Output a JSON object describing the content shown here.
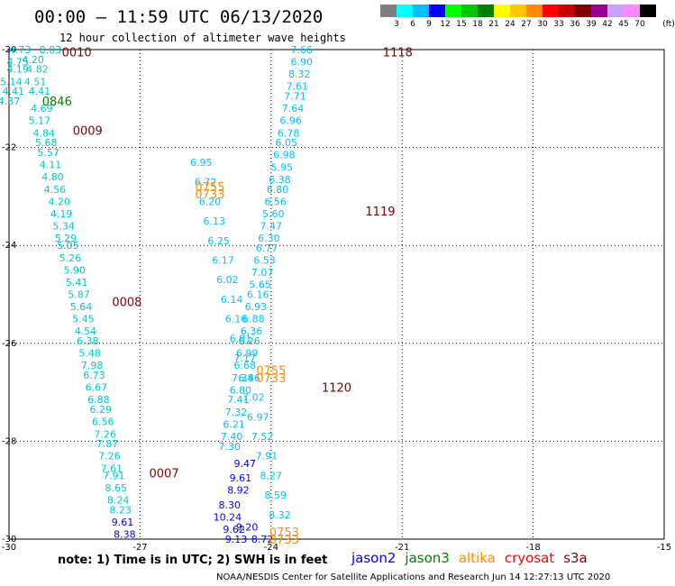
{
  "title": "00:00 – 11:59 UTC 06/13/2020",
  "subtitle": "12 hour collection of altimeter wave heights",
  "colorbar": {
    "unit": "(ft)",
    "colors": [
      "#7f7f7f",
      "#00ffff",
      "#00bfff",
      "#0000ff",
      "#00ff00",
      "#00c800",
      "#008000",
      "#ffff00",
      "#ffc800",
      "#ff8c00",
      "#ff0000",
      "#c80000",
      "#800000",
      "#9c0090",
      "#c8a0ff",
      "#ff88ff",
      "#000000"
    ],
    "labels": [
      "3",
      "6",
      "9",
      "12",
      "15",
      "18",
      "21",
      "24",
      "27",
      "30",
      "33",
      "36",
      "39",
      "42",
      "45",
      "70"
    ]
  },
  "chart_data": {
    "type": "scatter",
    "title": "00:00 – 11:59 UTC 06/13/2020",
    "xlim": [
      -30,
      -15
    ],
    "ylim": [
      -30,
      -20
    ],
    "x_ticks": [
      "-30",
      "-27",
      "-24",
      "-21",
      "-18",
      "-15"
    ],
    "y_ticks": [
      "-20",
      "-22",
      "-24",
      "-26",
      "-28",
      "-30"
    ],
    "grid": true,
    "time_labels": [
      {
        "text": "0010",
        "lon": -28.45,
        "lat": -20.05,
        "color": "#800000"
      },
      {
        "text": "0846",
        "lon": -28.9,
        "lat": -21.05,
        "color": "#008000"
      },
      {
        "text": "0009",
        "lon": -28.2,
        "lat": -21.65,
        "color": "#800000"
      },
      {
        "text": "0008",
        "lon": -27.3,
        "lat": -25.15,
        "color": "#800000"
      },
      {
        "text": "0007",
        "lon": -26.45,
        "lat": -28.65,
        "color": "#800000"
      },
      {
        "text": "0755",
        "lon": -25.4,
        "lat": -22.8,
        "color": "#ff8c00"
      },
      {
        "text": "0733",
        "lon": -25.4,
        "lat": -22.95,
        "color": "#ff8c00"
      },
      {
        "text": "0755",
        "lon": -24.0,
        "lat": -26.55,
        "color": "#ff8c00"
      },
      {
        "text": "0733",
        "lon": -24.0,
        "lat": -26.7,
        "color": "#ff8c00"
      },
      {
        "text": "0753",
        "lon": -23.7,
        "lat": -29.85,
        "color": "#ff8c00"
      },
      {
        "text": "0733",
        "lon": -23.7,
        "lat": -30.0,
        "color": "#ff8c00"
      },
      {
        "text": "1118",
        "lon": -21.1,
        "lat": -20.05,
        "color": "#800000"
      },
      {
        "text": "1119",
        "lon": -21.5,
        "lat": -23.3,
        "color": "#800000"
      },
      {
        "text": "1120",
        "lon": -22.5,
        "lat": -26.9,
        "color": "#800000"
      }
    ],
    "series": [
      {
        "name": "Track A",
        "color": "#00c8c8",
        "points": [
          {
            "lon": -29.75,
            "lat": -20.0,
            "v": "4.73"
          },
          {
            "lon": -29.05,
            "lat": -20.0,
            "v": "8.03"
          },
          {
            "lon": -29.45,
            "lat": -20.2,
            "v": "4.20"
          },
          {
            "lon": -29.8,
            "lat": -20.25,
            "v": "4.75"
          },
          {
            "lon": -29.8,
            "lat": -20.4,
            "v": "4.19"
          },
          {
            "lon": -29.35,
            "lat": -20.4,
            "v": "4.82"
          },
          {
            "lon": -29.95,
            "lat": -20.65,
            "v": "5.14"
          },
          {
            "lon": -29.4,
            "lat": -20.65,
            "v": "4.51"
          },
          {
            "lon": -29.9,
            "lat": -20.85,
            "v": "4.41"
          },
          {
            "lon": -29.3,
            "lat": -20.85,
            "v": "4.41"
          },
          {
            "lon": -30.0,
            "lat": -21.05,
            "v": "4.87"
          },
          {
            "lon": -29.25,
            "lat": -21.2,
            "v": "4.69"
          },
          {
            "lon": -29.3,
            "lat": -21.45,
            "v": "5.17"
          },
          {
            "lon": -29.2,
            "lat": -21.7,
            "v": "4.84"
          },
          {
            "lon": -29.15,
            "lat": -21.9,
            "v": "5.68"
          },
          {
            "lon": -29.1,
            "lat": -22.1,
            "v": "5.57"
          },
          {
            "lon": -29.05,
            "lat": -22.35,
            "v": "4.11"
          },
          {
            "lon": -29.0,
            "lat": -22.6,
            "v": "4.80"
          },
          {
            "lon": -28.95,
            "lat": -22.85,
            "v": "4.56"
          },
          {
            "lon": -28.85,
            "lat": -23.1,
            "v": "4.20"
          },
          {
            "lon": -28.8,
            "lat": -23.35,
            "v": "4.19"
          },
          {
            "lon": -28.75,
            "lat": -23.6,
            "v": "5.34"
          },
          {
            "lon": -28.7,
            "lat": -23.85,
            "v": "5.29"
          },
          {
            "lon": -28.65,
            "lat": -24.0,
            "v": "5.05"
          },
          {
            "lon": -28.6,
            "lat": -24.25,
            "v": "5.26"
          },
          {
            "lon": -28.5,
            "lat": -24.5,
            "v": "5.90"
          },
          {
            "lon": -28.45,
            "lat": -24.75,
            "v": "5.41"
          },
          {
            "lon": -28.4,
            "lat": -25.0,
            "v": "5.87"
          },
          {
            "lon": -28.35,
            "lat": -25.25,
            "v": "5.64"
          },
          {
            "lon": -28.3,
            "lat": -25.5,
            "v": "5.45"
          },
          {
            "lon": -28.25,
            "lat": -25.75,
            "v": "4.54"
          },
          {
            "lon": -28.2,
            "lat": -25.95,
            "v": "6.38"
          },
          {
            "lon": -28.15,
            "lat": -26.2,
            "v": "5.48"
          },
          {
            "lon": -28.1,
            "lat": -26.45,
            "v": "7.98"
          },
          {
            "lon": -28.05,
            "lat": -26.65,
            "v": "6.73"
          },
          {
            "lon": -28.0,
            "lat": -26.9,
            "v": "6.67"
          },
          {
            "lon": -27.95,
            "lat": -27.15,
            "v": "6.88"
          },
          {
            "lon": -27.9,
            "lat": -27.35,
            "v": "6.29"
          },
          {
            "lon": -27.85,
            "lat": -27.6,
            "v": "6.56"
          },
          {
            "lon": -27.8,
            "lat": -27.85,
            "v": "7.26"
          },
          {
            "lon": -27.75,
            "lat": -28.05,
            "v": "7.87"
          },
          {
            "lon": -27.7,
            "lat": -28.3,
            "v": "7.26"
          },
          {
            "lon": -27.65,
            "lat": -28.55,
            "v": "7.61"
          },
          {
            "lon": -27.6,
            "lat": -28.7,
            "v": "7.91"
          },
          {
            "lon": -27.55,
            "lat": -28.95,
            "v": "8.65"
          },
          {
            "lon": -27.5,
            "lat": -29.2,
            "v": "8.24"
          },
          {
            "lon": -27.45,
            "lat": -29.4,
            "v": "8.23"
          },
          {
            "lon": -27.4,
            "lat": -29.65,
            "v": "9.61",
            "color": "#0000ff"
          },
          {
            "lon": -27.35,
            "lat": -29.9,
            "v": "8.38",
            "color": "#0000ff"
          }
        ]
      },
      {
        "name": "Track B",
        "color": "#00bfff",
        "points": [
          {
            "lon": -25.6,
            "lat": -22.3,
            "v": "6.95"
          },
          {
            "lon": -25.5,
            "lat": -22.7,
            "v": "6.72"
          },
          {
            "lon": -25.4,
            "lat": -23.1,
            "v": "6.20"
          },
          {
            "lon": -25.3,
            "lat": -23.5,
            "v": "6.13"
          },
          {
            "lon": -25.2,
            "lat": -23.9,
            "v": "6.25"
          },
          {
            "lon": -25.1,
            "lat": -24.3,
            "v": "6.17"
          },
          {
            "lon": -25.0,
            "lat": -24.7,
            "v": "6.02"
          },
          {
            "lon": -24.9,
            "lat": -25.1,
            "v": "6.14"
          },
          {
            "lon": -24.8,
            "lat": -25.5,
            "v": "6.16"
          },
          {
            "lon": -24.7,
            "lat": -25.9,
            "v": "6.81"
          },
          {
            "lon": -24.6,
            "lat": -26.3,
            "v": "7.17"
          },
          {
            "lon": -24.5,
            "lat": -26.7,
            "v": "6.86"
          },
          {
            "lon": -24.4,
            "lat": -27.1,
            "v": "7.02"
          },
          {
            "lon": -24.3,
            "lat": -27.5,
            "v": "6.97"
          },
          {
            "lon": -24.2,
            "lat": -27.9,
            "v": "7.52"
          },
          {
            "lon": -24.1,
            "lat": -28.3,
            "v": "7.91"
          },
          {
            "lon": -24.0,
            "lat": -28.7,
            "v": "8.27"
          },
          {
            "lon": -23.9,
            "lat": -29.1,
            "v": "8.59"
          },
          {
            "lon": -23.8,
            "lat": -29.5,
            "v": "8.32"
          }
        ]
      },
      {
        "name": "Track C",
        "color": "#00bfff",
        "points": [
          {
            "lon": -23.3,
            "lat": -20.0,
            "v": "7.66"
          },
          {
            "lon": -23.3,
            "lat": -20.25,
            "v": "6.90"
          },
          {
            "lon": -23.35,
            "lat": -20.5,
            "v": "8.32"
          },
          {
            "lon": -23.4,
            "lat": -20.75,
            "v": "7.61"
          },
          {
            "lon": -23.45,
            "lat": -20.95,
            "v": "7.71"
          },
          {
            "lon": -23.5,
            "lat": -21.2,
            "v": "7.64"
          },
          {
            "lon": -23.55,
            "lat": -21.45,
            "v": "6.96"
          },
          {
            "lon": -23.6,
            "lat": -21.7,
            "v": "6.78"
          },
          {
            "lon": -23.65,
            "lat": -21.9,
            "v": "6.05"
          },
          {
            "lon": -23.7,
            "lat": -22.15,
            "v": "6.98"
          },
          {
            "lon": -23.75,
            "lat": -22.4,
            "v": "5.95"
          },
          {
            "lon": -23.8,
            "lat": -22.65,
            "v": "6.38"
          },
          {
            "lon": -23.85,
            "lat": -22.85,
            "v": "6.80"
          },
          {
            "lon": -23.9,
            "lat": -23.1,
            "v": "6.56"
          },
          {
            "lon": -23.95,
            "lat": -23.35,
            "v": "5.60"
          },
          {
            "lon": -24.0,
            "lat": -23.6,
            "v": "7.47"
          },
          {
            "lon": -24.05,
            "lat": -23.85,
            "v": "6.30"
          },
          {
            "lon": -24.1,
            "lat": -24.05,
            "v": "6.77"
          },
          {
            "lon": -24.15,
            "lat": -24.3,
            "v": "6.53"
          },
          {
            "lon": -24.2,
            "lat": -24.55,
            "v": "7.07"
          },
          {
            "lon": -24.25,
            "lat": -24.8,
            "v": "5.65"
          },
          {
            "lon": -24.3,
            "lat": -25.0,
            "v": "6.16"
          },
          {
            "lon": -24.35,
            "lat": -25.25,
            "v": "6.93"
          },
          {
            "lon": -24.4,
            "lat": -25.5,
            "v": "6.88"
          },
          {
            "lon": -24.45,
            "lat": -25.75,
            "v": "6.36"
          },
          {
            "lon": -24.5,
            "lat": -25.95,
            "v": "6.26"
          },
          {
            "lon": -24.55,
            "lat": -26.2,
            "v": "6.99"
          },
          {
            "lon": -24.6,
            "lat": -26.45,
            "v": "6.68"
          },
          {
            "lon": -24.65,
            "lat": -26.7,
            "v": "7.34"
          },
          {
            "lon": -24.7,
            "lat": -26.95,
            "v": "6.80"
          },
          {
            "lon": -24.75,
            "lat": -27.15,
            "v": "7.41"
          },
          {
            "lon": -24.8,
            "lat": -27.4,
            "v": "7.32"
          },
          {
            "lon": -24.85,
            "lat": -27.65,
            "v": "6.21"
          },
          {
            "lon": -24.9,
            "lat": -27.9,
            "v": "7.40"
          },
          {
            "lon": -24.95,
            "lat": -28.1,
            "v": "7.30"
          }
        ]
      },
      {
        "name": "Track D",
        "color": "#0000ff",
        "points": [
          {
            "lon": -24.6,
            "lat": -28.45,
            "v": "9.47"
          },
          {
            "lon": -24.7,
            "lat": -28.75,
            "v": "9.61"
          },
          {
            "lon": -24.75,
            "lat": -29.0,
            "v": "8.92"
          },
          {
            "lon": -24.95,
            "lat": -29.3,
            "v": "8.30"
          },
          {
            "lon": -25.0,
            "lat": -29.55,
            "v": "10.24"
          },
          {
            "lon": -24.85,
            "lat": -29.8,
            "v": "9.62"
          },
          {
            "lon": -24.55,
            "lat": -29.75,
            "v": "9.20"
          },
          {
            "lon": -24.8,
            "lat": -30.0,
            "v": "9.13"
          },
          {
            "lon": -24.2,
            "lat": -30.0,
            "v": "8.72"
          }
        ]
      }
    ]
  },
  "note": "note: 1) Time is in UTC; 2) SWH is in feet",
  "legend": [
    {
      "name": "jason2",
      "color": "#0000ff"
    },
    {
      "name": "jason3",
      "color": "#008000"
    },
    {
      "name": "altika",
      "color": "#ff8c00"
    },
    {
      "name": "cryosat",
      "color": "#ff0000"
    },
    {
      "name": "s3a",
      "color": "#800000"
    }
  ],
  "credit": "NOAA/NESDIS Center for Satellite Applications and Research    Jun 14 12:27:13 UTC 2020"
}
